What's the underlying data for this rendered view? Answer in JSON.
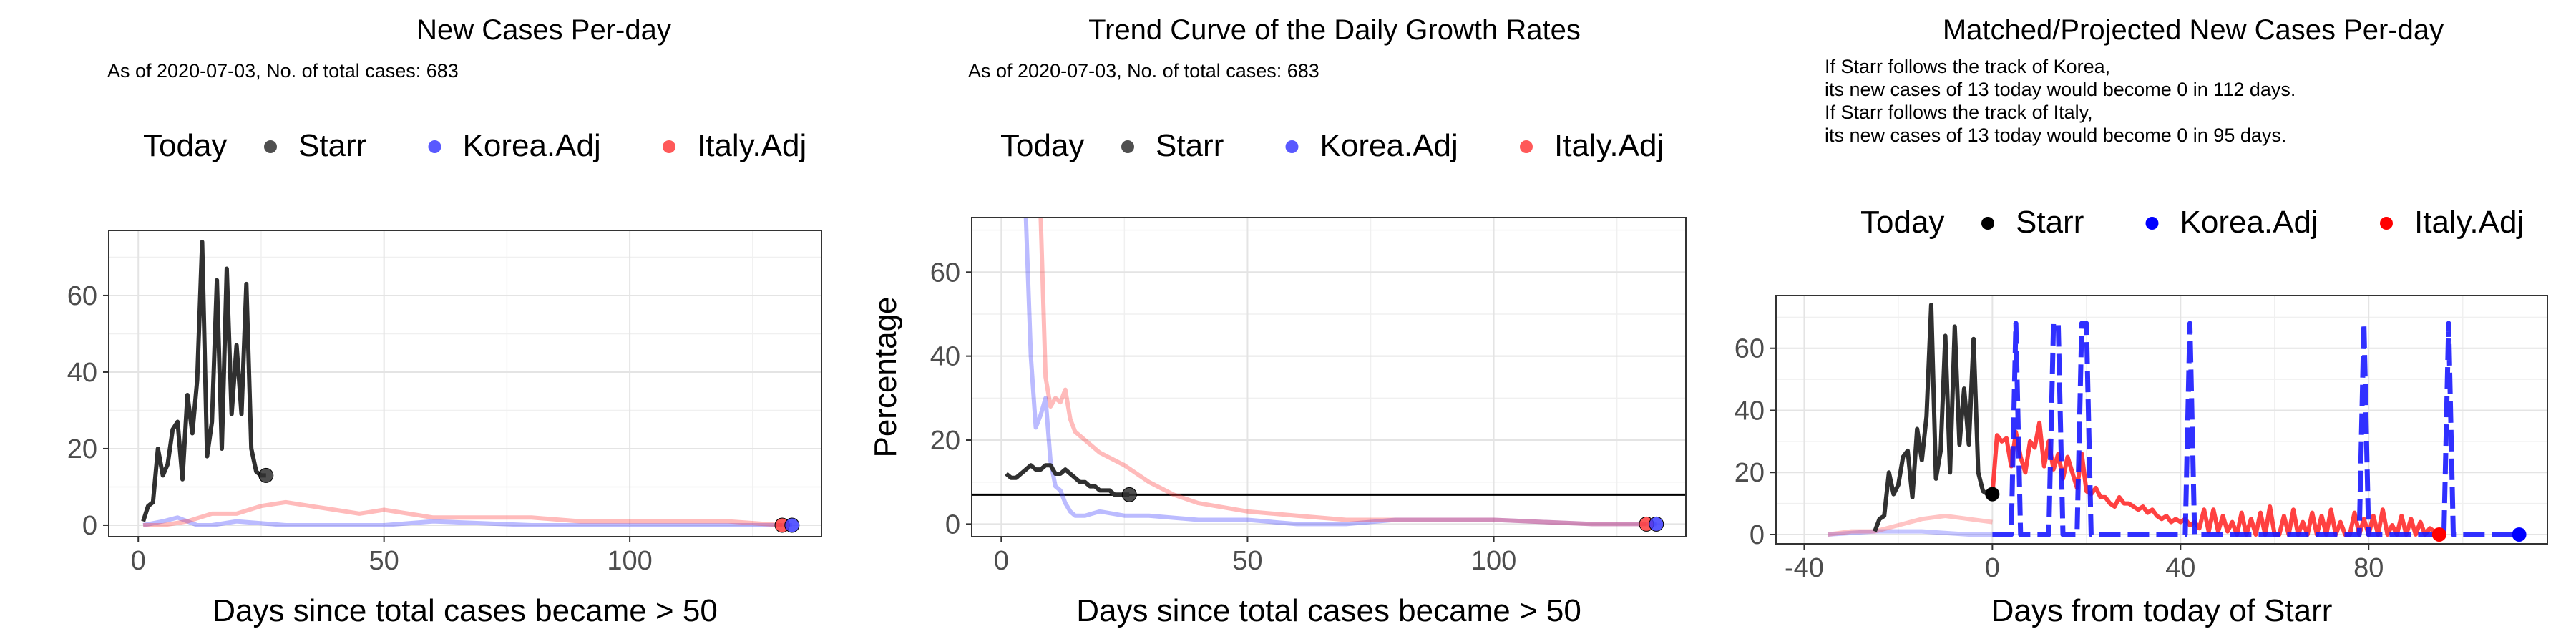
{
  "chart_data": [
    {
      "type": "line",
      "title": "New Cases Per-day",
      "subtitle": "As of 2020-07-03, No. of total cases: 683",
      "xlabel": "Days since total cases became > 50",
      "ylabel": "",
      "xlim": [
        -6,
        139
      ],
      "ylim": [
        -3,
        77
      ],
      "xticks": [
        0,
        50,
        100
      ],
      "yticks": [
        0,
        20,
        40,
        60
      ],
      "grid": true,
      "legend_position": "top",
      "legend": [
        {
          "label": "Today",
          "kind": "title"
        },
        {
          "label": "Starr",
          "color": "#303030"
        },
        {
          "label": "Korea.Adj",
          "color": "#3c3cff"
        },
        {
          "label": "Italy.Adj",
          "color": "#ff3c3c"
        }
      ],
      "series": [
        {
          "name": "Starr",
          "color": "#303030",
          "opacity": 1,
          "x": [
            1,
            2,
            3,
            4,
            5,
            6,
            7,
            8,
            9,
            10,
            11,
            12,
            13,
            14,
            15,
            16,
            17,
            18,
            19,
            20,
            21,
            22,
            23,
            24,
            25,
            26
          ],
          "y": [
            1,
            5,
            6,
            20,
            13,
            16,
            25,
            27,
            12,
            34,
            24,
            38,
            74,
            18,
            27,
            64,
            20,
            67,
            29,
            47,
            29,
            63,
            20,
            14,
            13,
            13
          ]
        },
        {
          "name": "Korea.Adj",
          "color": "#3c3cff",
          "opacity": 0.35,
          "x": [
            1,
            5,
            8,
            10,
            12,
            15,
            20,
            30,
            40,
            50,
            60,
            80,
            100,
            120,
            133
          ],
          "y": [
            0,
            1,
            2,
            1,
            0,
            0,
            1,
            0,
            0,
            0,
            1,
            0,
            0,
            0,
            0
          ]
        },
        {
          "name": "Italy.Adj",
          "color": "#ff3c3c",
          "opacity": 0.35,
          "x": [
            1,
            5,
            10,
            15,
            20,
            25,
            30,
            35,
            40,
            45,
            50,
            55,
            60,
            70,
            80,
            90,
            100,
            110,
            120,
            131
          ],
          "y": [
            0,
            0,
            1,
            3,
            3,
            5,
            6,
            5,
            4,
            3,
            4,
            3,
            2,
            2,
            2,
            1,
            1,
            1,
            1,
            0
          ]
        }
      ],
      "today_points": [
        {
          "series": "Starr",
          "x": 26,
          "y": 13,
          "color": "#303030"
        },
        {
          "series": "Italy.Adj",
          "x": 131,
          "y": 0,
          "color": "#ff3c3c"
        },
        {
          "series": "Korea.Adj",
          "x": 133,
          "y": 0,
          "color": "#3c3cff"
        }
      ]
    },
    {
      "type": "line",
      "title": "Trend Curve of the Daily Growth Rates",
      "subtitle": "As of 2020-07-03, No. of total cases: 683",
      "xlabel": "Days since total cases became > 50",
      "ylabel": "Percentage",
      "xlim": [
        -6,
        139
      ],
      "ylim": [
        -3,
        73
      ],
      "xticks": [
        0,
        50,
        100
      ],
      "yticks": [
        0,
        20,
        40,
        60
      ],
      "grid": true,
      "hline": 7,
      "legend_position": "top",
      "legend": [
        {
          "label": "Today",
          "kind": "title"
        },
        {
          "label": "Starr",
          "color": "#303030"
        },
        {
          "label": "Korea.Adj",
          "color": "#3c3cff"
        },
        {
          "label": "Italy.Adj",
          "color": "#ff3c3c"
        }
      ],
      "series": [
        {
          "name": "Korea.Adj",
          "color": "#3c3cff",
          "opacity": 0.35,
          "x": [
            5,
            6,
            7,
            8,
            9,
            10,
            11,
            12,
            13,
            14,
            15,
            17,
            20,
            25,
            30,
            40,
            50,
            60,
            70,
            80,
            100,
            120,
            133
          ],
          "y": [
            73,
            40,
            23,
            26,
            30,
            15,
            9,
            8,
            5,
            3,
            2,
            2,
            3,
            2,
            2,
            1,
            1,
            0,
            0,
            1,
            1,
            0,
            0
          ]
        },
        {
          "name": "Italy.Adj",
          "color": "#ff3c3c",
          "opacity": 0.35,
          "x": [
            8,
            9,
            10,
            11,
            12,
            13,
            14,
            15,
            17,
            20,
            25,
            30,
            35,
            40,
            45,
            50,
            60,
            70,
            80,
            100,
            120,
            131
          ],
          "y": [
            73,
            35,
            28,
            30,
            29,
            32,
            25,
            22,
            20,
            17,
            14,
            10,
            7,
            5,
            4,
            3,
            2,
            1,
            1,
            1,
            0,
            0
          ]
        },
        {
          "name": "Starr",
          "color": "#303030",
          "opacity": 1,
          "x": [
            1,
            2,
            3,
            4,
            5,
            6,
            7,
            8,
            9,
            10,
            11,
            12,
            13,
            14,
            15,
            16,
            17,
            18,
            19,
            20,
            21,
            22,
            23,
            24,
            25,
            26
          ],
          "y": [
            12,
            11,
            11,
            12,
            13,
            14,
            13,
            13,
            14,
            14,
            12,
            12,
            13,
            12,
            11,
            10,
            10,
            9,
            9,
            8,
            8,
            8,
            7,
            7,
            7,
            7
          ]
        }
      ],
      "today_points": [
        {
          "series": "Starr",
          "x": 26,
          "y": 7,
          "color": "#303030"
        },
        {
          "series": "Italy.Adj",
          "x": 131,
          "y": 0,
          "color": "#ff3c3c"
        },
        {
          "series": "Korea.Adj",
          "x": 133,
          "y": 0,
          "color": "#3c3cff"
        }
      ]
    },
    {
      "type": "line",
      "title": "Matched/Projected New Cases Per-day",
      "subtitle": "If Starr follows the track of Korea,\nits new cases of 13 today would become 0 in 112 days.\nIf Starr follows the track of Italy,\nits new cases of 13 today would become 0 in 95 days.",
      "xlabel": "Days from today of Starr",
      "ylabel": "",
      "xlim": [
        -46,
        118
      ],
      "ylim": [
        -3,
        77
      ],
      "xticks": [
        -40,
        0,
        40,
        80
      ],
      "yticks": [
        0,
        20,
        40,
        60
      ],
      "grid": true,
      "legend_position": "top",
      "legend": [
        {
          "label": "Today",
          "kind": "title"
        },
        {
          "label": "Starr",
          "color": "#000000"
        },
        {
          "label": "Korea.Adj",
          "color": "#0000ff"
        },
        {
          "label": "Italy.Adj",
          "color": "#ff0000"
        }
      ],
      "series": [
        {
          "name": "Korea.Adj (history)",
          "color": "#3c3cff",
          "opacity": 0.3,
          "x": [
            -35,
            -25,
            -15,
            -5,
            0
          ],
          "y": [
            0,
            1,
            1,
            0,
            0
          ]
        },
        {
          "name": "Italy.Adj (history)",
          "color": "#ff3c3c",
          "opacity": 0.3,
          "x": [
            -35,
            -30,
            -25,
            -20,
            -15,
            -10,
            -5,
            0
          ],
          "y": [
            0,
            1,
            1,
            3,
            5,
            6,
            5,
            4
          ]
        },
        {
          "name": "Starr",
          "color": "#303030",
          "opacity": 1,
          "x": [
            -25,
            -24,
            -23,
            -22,
            -21,
            -20,
            -19,
            -18,
            -17,
            -16,
            -15,
            -14,
            -13,
            -12,
            -11,
            -10,
            -9,
            -8,
            -7,
            -6,
            -5,
            -4,
            -3,
            -2,
            -1,
            0
          ],
          "y": [
            1,
            5,
            6,
            20,
            13,
            16,
            25,
            27,
            12,
            34,
            24,
            38,
            74,
            18,
            27,
            64,
            20,
            67,
            29,
            47,
            29,
            63,
            20,
            14,
            13,
            13
          ]
        },
        {
          "name": "Italy.Adj",
          "color": "#ff2020",
          "opacity": 0.85,
          "dash": false,
          "x": [
            0,
            1,
            2,
            3,
            4,
            5,
            6,
            7,
            8,
            9,
            10,
            11,
            12,
            13,
            14,
            15,
            16,
            17,
            18,
            19,
            20,
            21,
            22,
            23,
            24,
            25,
            26,
            27,
            28,
            29,
            30,
            31,
            32,
            33,
            34,
            35,
            36,
            37,
            38,
            39,
            40,
            41,
            42,
            43,
            44,
            45,
            46,
            47,
            48,
            49,
            50,
            51,
            52,
            53,
            54,
            55,
            56,
            57,
            58,
            59,
            60,
            61,
            62,
            63,
            64,
            65,
            66,
            67,
            68,
            69,
            70,
            71,
            72,
            73,
            74,
            75,
            76,
            77,
            78,
            79,
            80,
            81,
            82,
            83,
            84,
            85,
            86,
            87,
            88,
            89,
            90,
            91,
            92,
            93,
            94,
            95
          ],
          "y": [
            13,
            32,
            30,
            31,
            22,
            33,
            25,
            20,
            30,
            28,
            36,
            22,
            30,
            21,
            26,
            18,
            25,
            20,
            15,
            26,
            14,
            13,
            15,
            12,
            12,
            10,
            9,
            12,
            10,
            10,
            9,
            8,
            9,
            7,
            8,
            6,
            5,
            6,
            4,
            5,
            4,
            5,
            3,
            4,
            2,
            8,
            1,
            8,
            1,
            6,
            1,
            4,
            0,
            7,
            0,
            5,
            0,
            7,
            0,
            9,
            0,
            0,
            6,
            0,
            8,
            0,
            4,
            0,
            7,
            0,
            6,
            0,
            8,
            0,
            4,
            0,
            0,
            7,
            0,
            5,
            0,
            6,
            0,
            8,
            0,
            3,
            0,
            6,
            0,
            5,
            0,
            4,
            0,
            2,
            1,
            0
          ]
        },
        {
          "name": "Korea.Adj",
          "color": "#1a1aff",
          "opacity": 0.9,
          "dash": true,
          "x": [
            0,
            2,
            4,
            5,
            6,
            7,
            8,
            12,
            13,
            14,
            15,
            16,
            18,
            19,
            20,
            21,
            22,
            40,
            41,
            42,
            43,
            44,
            78,
            79,
            80,
            81,
            82,
            96,
            97,
            98,
            99,
            100,
            112
          ],
          "y": [
            0,
            0,
            0,
            68,
            0,
            0,
            0,
            0,
            68,
            68,
            0,
            0,
            0,
            68,
            68,
            0,
            0,
            0,
            0,
            68,
            0,
            0,
            0,
            68,
            0,
            0,
            0,
            0,
            68,
            0,
            0,
            0,
            0
          ]
        }
      ],
      "today_points": [
        {
          "series": "Starr",
          "x": 0,
          "y": 13,
          "color": "#000000"
        },
        {
          "series": "Italy.Adj",
          "x": 95,
          "y": 0,
          "color": "#ff0000"
        },
        {
          "series": "Korea.Adj",
          "x": 112,
          "y": 0,
          "color": "#0000ff"
        }
      ]
    }
  ]
}
